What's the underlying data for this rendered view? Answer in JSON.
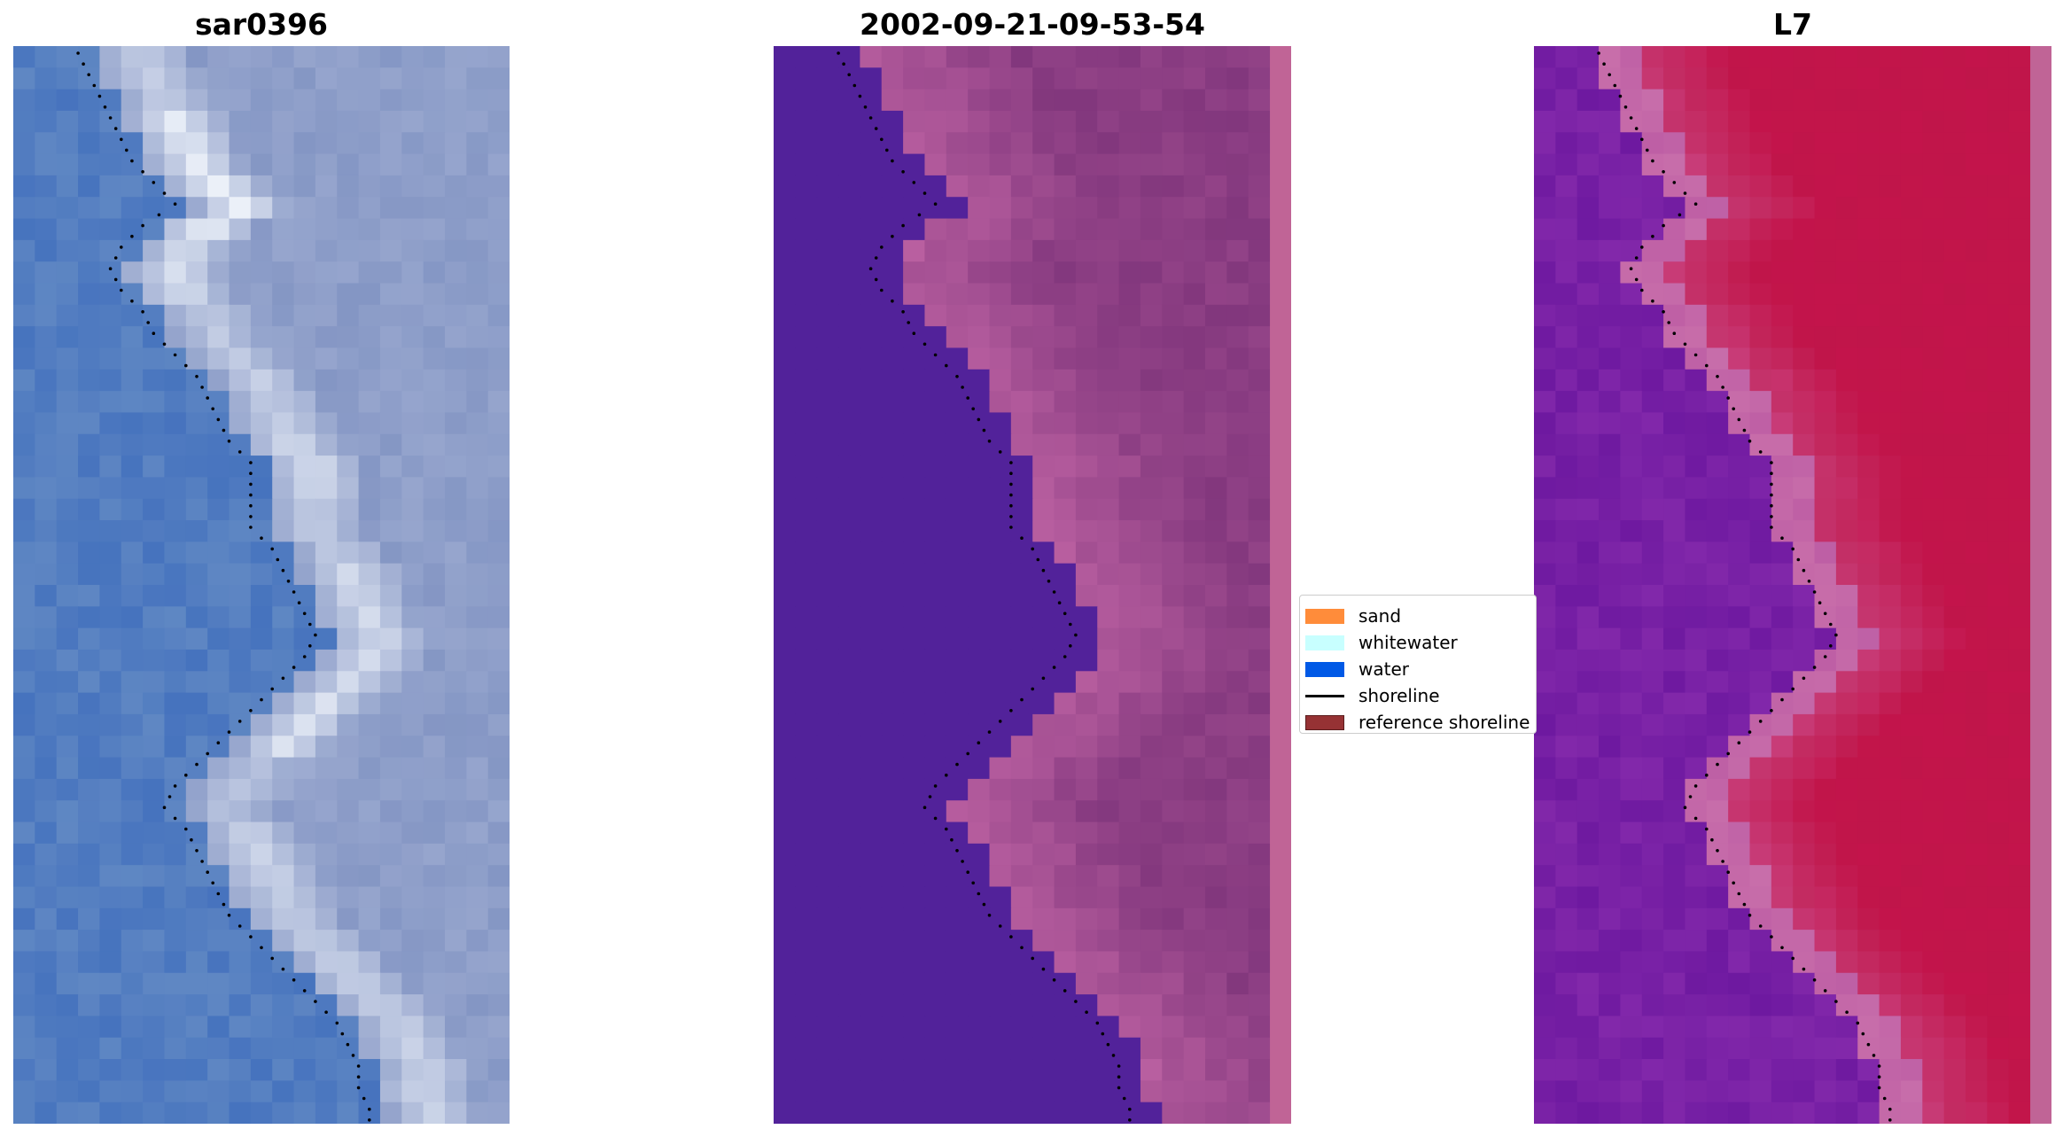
{
  "panels": [
    {
      "title": "sar0396",
      "kind": "rgb"
    },
    {
      "title": "2002-09-21-09-53-54",
      "kind": "classified"
    },
    {
      "title": "L7",
      "kind": "index"
    }
  ],
  "legend": {
    "items": [
      {
        "label": "sand",
        "color": "#ff8c3a",
        "kind": "patch"
      },
      {
        "label": "whitewater",
        "color": "#c8ffff",
        "kind": "patch"
      },
      {
        "label": "water",
        "color": "#0059e6",
        "kind": "patch"
      },
      {
        "label": "shoreline",
        "color": "#000000",
        "kind": "line"
      },
      {
        "label": "reference shoreline",
        "color": "#963234",
        "kind": "patch"
      }
    ]
  },
  "colors": {
    "water_class": "#52229a",
    "land_class": "#9c4f8e",
    "index_water": "#7b1fa0",
    "index_land": "#c5184e",
    "edge_strip": "#c06496",
    "shoreline": "#000000"
  }
}
